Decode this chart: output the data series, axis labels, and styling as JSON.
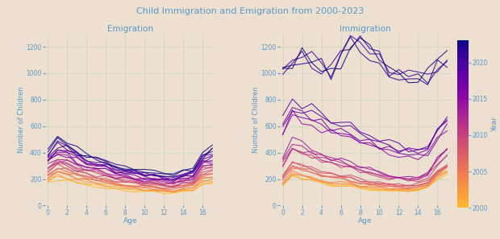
{
  "title": "Child Immigration and Emigration from 2000-2023",
  "subplot_titles": [
    "Emigration",
    "Immigration"
  ],
  "xlabel": "Age",
  "ylabel": "Number of Children",
  "background_color": "#ede0d0",
  "grid_color": "#c5d5c0",
  "text_color": "#5599cc",
  "title_color": "#5599cc",
  "ages": [
    0,
    1,
    2,
    3,
    4,
    5,
    6,
    7,
    8,
    9,
    10,
    11,
    12,
    13,
    14,
    15,
    16,
    17
  ],
  "year_start": 2000,
  "year_end": 2023,
  "ylim": [
    0,
    1300
  ],
  "yticks": [
    0,
    200,
    400,
    600,
    800,
    1000,
    1200
  ],
  "xticks": [
    0,
    2,
    4,
    6,
    8,
    10,
    12,
    14,
    16
  ]
}
